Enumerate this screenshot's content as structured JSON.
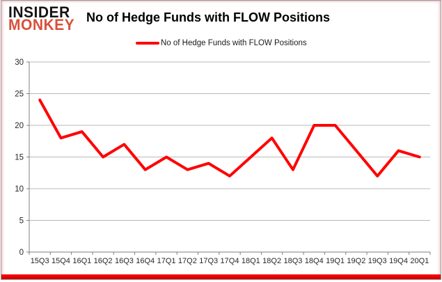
{
  "logo": {
    "line1": "INSIDER",
    "line2": "MONKEY"
  },
  "header": {
    "title": "No of Hedge Funds with FLOW Positions"
  },
  "legend": {
    "label": "No of Hedge Funds with FLOW Positions",
    "swatch_color": "#ff0000"
  },
  "colors": {
    "line": "#ff0000",
    "logo_accent": "#d9503a",
    "grid": "#b8b8b8",
    "axis": "#7f7f7f",
    "tick_label": "#262626",
    "bottom_band": "#e60000"
  },
  "chart_data": {
    "type": "line",
    "title": "No of Hedge Funds with FLOW Positions",
    "series": [
      {
        "name": "No of Hedge Funds with FLOW Positions",
        "values": [
          24,
          18,
          19,
          15,
          17,
          13,
          15,
          13,
          14,
          12,
          15,
          18,
          13,
          20,
          20,
          16,
          12,
          16,
          15
        ]
      }
    ],
    "categories": [
      "15Q3",
      "15Q4",
      "16Q1",
      "16Q2",
      "16Q3",
      "16Q4",
      "17Q1",
      "17Q2",
      "17Q3",
      "17Q4",
      "18Q1",
      "18Q2",
      "18Q3",
      "18Q4",
      "19Q1",
      "19Q2",
      "19Q3",
      "19Q4",
      "20Q1"
    ],
    "xlabel": "",
    "ylabel": "",
    "ylim": [
      0,
      30
    ],
    "ytick_step": 5,
    "yticks": [
      0,
      5,
      10,
      15,
      20,
      25,
      30
    ],
    "grid": true,
    "legend_position": "top-center",
    "line_color": "#ff0000",
    "line_width": 4
  }
}
